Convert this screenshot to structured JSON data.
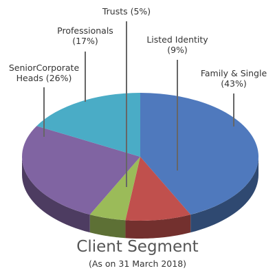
{
  "chart_data": {
    "type": "pie",
    "title": "Client Segment",
    "subtitle": "(As on 31 March 2018)",
    "slices": [
      {
        "label_lines": [
          "Family & Single",
          "(43%)"
        ],
        "value": 43,
        "color": "#4f79bd"
      },
      {
        "label_lines": [
          "Listed Identity",
          "(9%)"
        ],
        "value": 9,
        "color": "#c0504d"
      },
      {
        "label_lines": [
          "Trusts (5%)"
        ],
        "value": 5,
        "color": "#9bbb59"
      },
      {
        "label_lines": [
          "SeniorCorporate",
          "Heads (26%)"
        ],
        "value": 26,
        "color": "#8064a2"
      },
      {
        "label_lines": [
          "Professionals",
          "(17%)"
        ],
        "value": 17,
        "color": "#4aacc6"
      }
    ]
  }
}
